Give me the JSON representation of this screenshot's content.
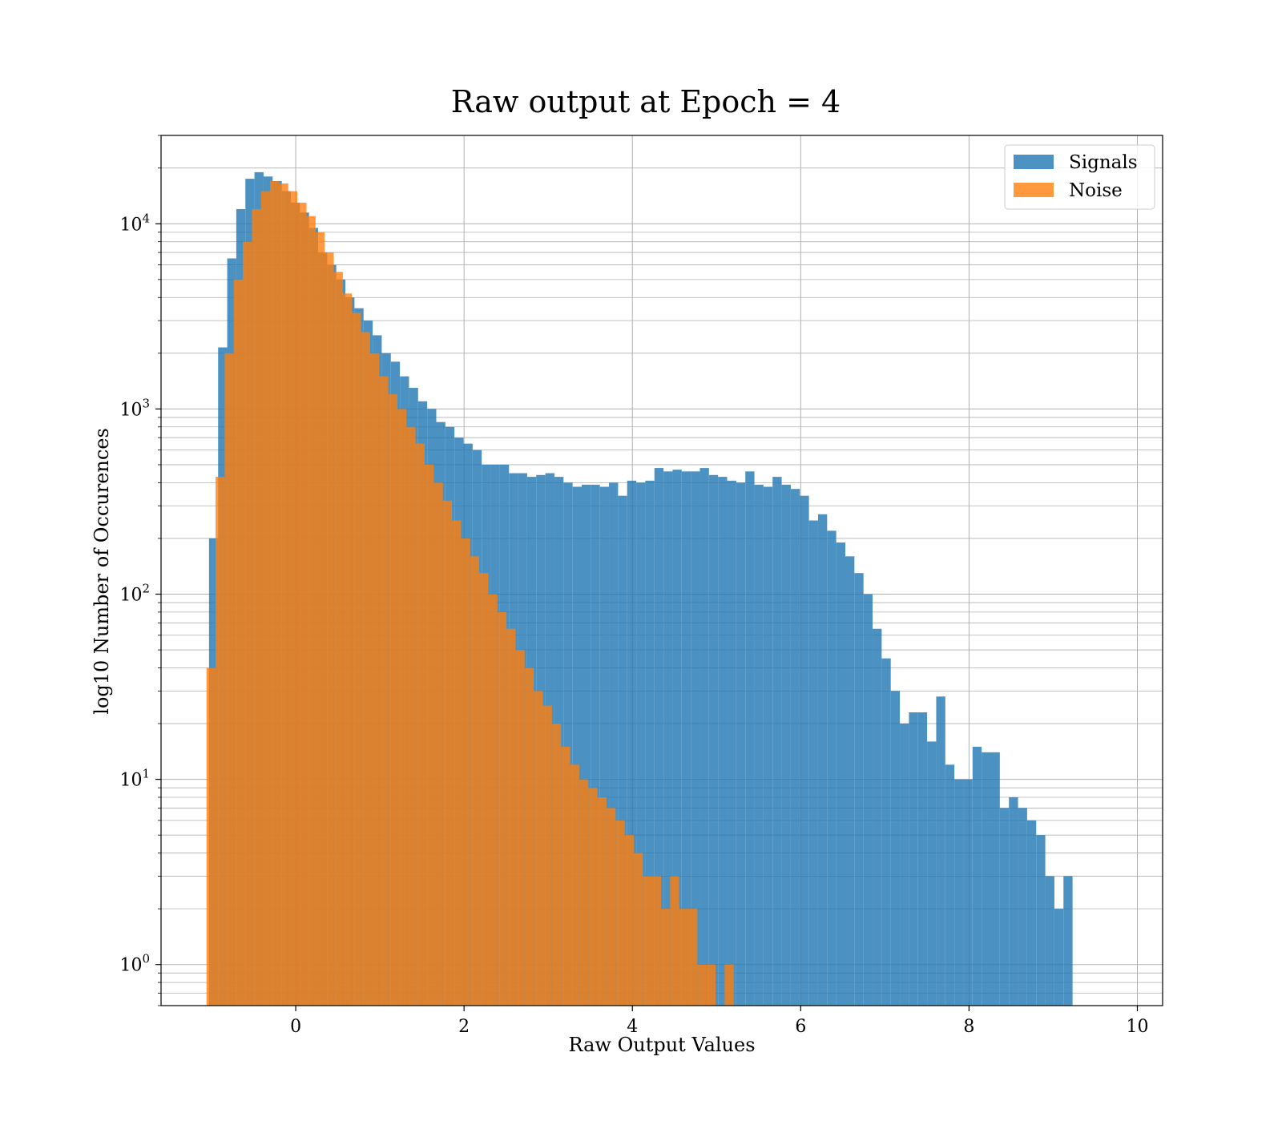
{
  "chart_data": {
    "type": "histogram",
    "title": "Raw output at Epoch = 4",
    "xlabel": "Raw Output Values",
    "ylabel": "log10 Number of Occurences",
    "y_scale": "log",
    "xlim": [
      -1.6,
      10.3
    ],
    "ylim": [
      0.6,
      30000
    ],
    "x_ticks": [
      0,
      2,
      4,
      6,
      8,
      10
    ],
    "x_tick_labels": [
      "0",
      "2",
      "4",
      "6",
      "8",
      "10"
    ],
    "y_ticks": [
      1,
      10,
      100,
      1000,
      10000
    ],
    "y_tick_labels": [
      "10",
      "10",
      "10",
      "10",
      "10"
    ],
    "y_tick_exponents": [
      "0",
      "1",
      "2",
      "3",
      "4"
    ],
    "grid": true,
    "legend_position": "upper right",
    "bin_width": 0.108,
    "series": [
      {
        "name": "Signals",
        "color": "#1f77b4",
        "bin_start": -1.03,
        "counts": [
          200,
          2150,
          6500,
          12000,
          17500,
          19000,
          18000,
          17000,
          15000,
          13000,
          11500,
          9500,
          7000,
          6000,
          5000,
          4000,
          3500,
          3000,
          2500,
          2000,
          1800,
          1500,
          1300,
          1100,
          1000,
          850,
          800,
          700,
          650,
          600,
          500,
          500,
          500,
          450,
          450,
          430,
          440,
          450,
          430,
          400,
          380,
          390,
          390,
          380,
          400,
          340,
          410,
          400,
          410,
          480,
          460,
          470,
          460,
          460,
          480,
          440,
          430,
          410,
          400,
          460,
          390,
          380,
          430,
          390,
          370,
          340,
          250,
          270,
          220,
          190,
          160,
          130,
          100,
          65,
          45,
          30,
          20,
          23,
          23,
          16,
          28,
          12,
          10,
          10,
          15,
          14,
          14,
          7,
          8,
          7,
          6,
          5,
          3,
          2,
          3
        ],
        "noise_bins_start": -1.06
      },
      {
        "name": "Noise",
        "color": "#ff7f0e",
        "bin_start": -1.06,
        "counts": [
          40,
          430,
          2000,
          5000,
          8000,
          12000,
          15000,
          17000,
          16500,
          15000,
          13000,
          11000,
          9000,
          7000,
          5500,
          4200,
          3300,
          2600,
          2000,
          1500,
          1200,
          1000,
          800,
          650,
          500,
          400,
          320,
          250,
          200,
          160,
          130,
          100,
          80,
          65,
          50,
          40,
          30,
          25,
          20,
          15,
          12,
          10,
          9,
          8,
          7,
          6,
          5,
          4,
          3,
          3,
          2,
          3,
          2,
          2,
          1,
          1,
          0,
          1,
          0,
          0,
          0,
          0,
          0,
          0,
          0,
          0,
          0,
          0,
          0,
          0,
          0,
          0,
          0,
          0,
          0,
          0,
          0,
          0,
          0,
          0,
          0,
          0,
          0,
          0,
          0,
          0,
          0,
          0,
          0,
          0,
          0,
          0,
          0,
          0,
          0
        ]
      }
    ],
    "legend": [
      {
        "label": "Signals",
        "color": "#1f77b4"
      },
      {
        "label": "Noise",
        "color": "#ff7f0e"
      }
    ]
  }
}
